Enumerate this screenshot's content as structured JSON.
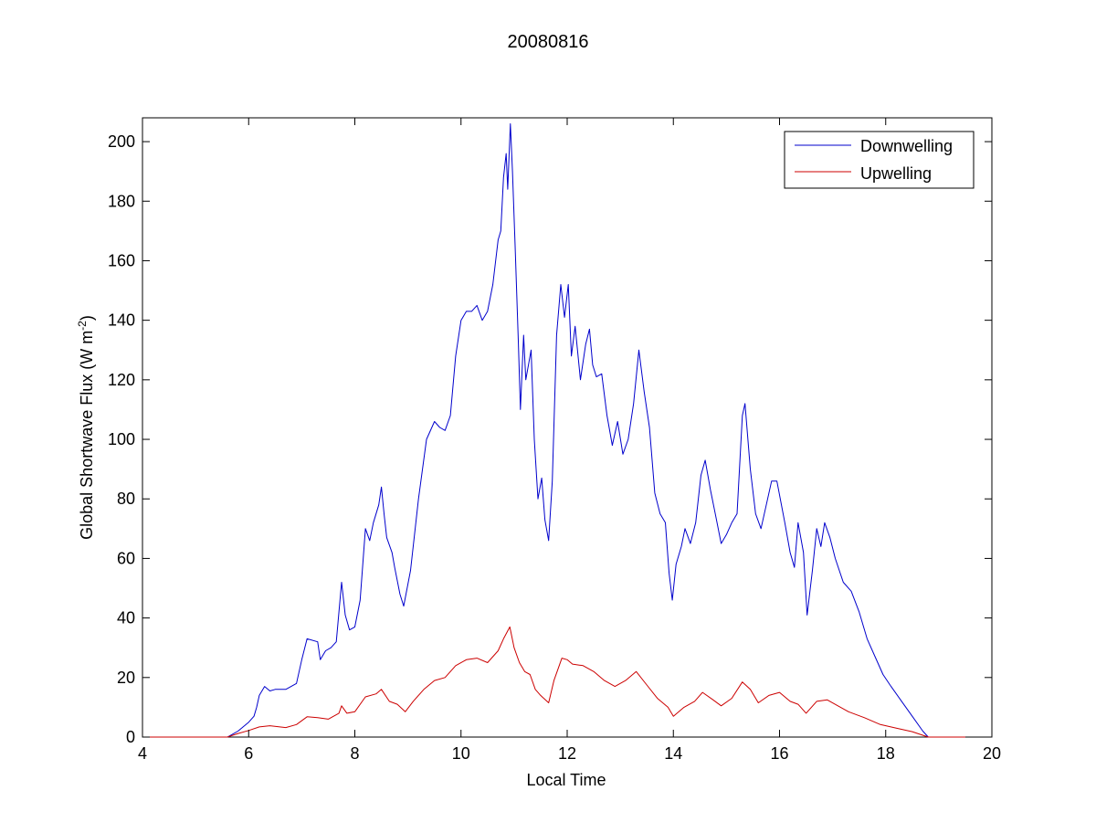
{
  "chart_data": {
    "type": "line",
    "title": "20080816",
    "xlabel": "Local Time",
    "ylabel_main": "Global Shortwave Flux (W m",
    "ylabel_sup": "-2",
    "ylabel_close": ")",
    "xlim": [
      4,
      20
    ],
    "ylim": [
      0,
      208
    ],
    "xticks": [
      4,
      6,
      8,
      10,
      12,
      14,
      16,
      18,
      20
    ],
    "yticks": [
      0,
      20,
      40,
      60,
      80,
      100,
      120,
      140,
      160,
      180,
      200
    ],
    "grid": false,
    "legend_position": "top-right",
    "series": [
      {
        "name": "Downwelling",
        "color": "#0000cc",
        "points": [
          [
            4.0,
            0
          ],
          [
            5.6,
            0
          ],
          [
            5.8,
            2
          ],
          [
            6.0,
            5
          ],
          [
            6.1,
            7
          ],
          [
            6.15,
            10
          ],
          [
            6.2,
            14
          ],
          [
            6.3,
            17
          ],
          [
            6.4,
            15.5
          ],
          [
            6.5,
            16
          ],
          [
            6.7,
            16
          ],
          [
            6.9,
            18
          ],
          [
            7.0,
            26
          ],
          [
            7.1,
            33
          ],
          [
            7.3,
            32
          ],
          [
            7.35,
            26
          ],
          [
            7.45,
            29
          ],
          [
            7.55,
            30
          ],
          [
            7.65,
            32
          ],
          [
            7.75,
            52
          ],
          [
            7.82,
            41
          ],
          [
            7.9,
            36
          ],
          [
            8.0,
            37
          ],
          [
            8.1,
            46
          ],
          [
            8.2,
            70
          ],
          [
            8.28,
            66
          ],
          [
            8.35,
            72
          ],
          [
            8.45,
            78
          ],
          [
            8.5,
            84
          ],
          [
            8.55,
            75
          ],
          [
            8.6,
            67
          ],
          [
            8.7,
            62
          ],
          [
            8.75,
            57
          ],
          [
            8.85,
            48
          ],
          [
            8.92,
            44
          ],
          [
            9.05,
            56
          ],
          [
            9.2,
            80
          ],
          [
            9.35,
            100
          ],
          [
            9.5,
            106
          ],
          [
            9.6,
            104
          ],
          [
            9.7,
            103
          ],
          [
            9.8,
            108
          ],
          [
            9.9,
            128
          ],
          [
            10.0,
            140
          ],
          [
            10.1,
            143
          ],
          [
            10.2,
            143
          ],
          [
            10.3,
            145
          ],
          [
            10.4,
            140
          ],
          [
            10.5,
            143
          ],
          [
            10.6,
            152
          ],
          [
            10.7,
            167
          ],
          [
            10.75,
            170
          ],
          [
            10.8,
            188
          ],
          [
            10.85,
            196
          ],
          [
            10.88,
            184
          ],
          [
            10.93,
            206
          ],
          [
            10.97,
            190
          ],
          [
            11.02,
            165
          ],
          [
            11.08,
            133
          ],
          [
            11.12,
            110
          ],
          [
            11.18,
            135
          ],
          [
            11.22,
            120
          ],
          [
            11.32,
            130
          ],
          [
            11.38,
            100
          ],
          [
            11.45,
            80
          ],
          [
            11.52,
            87
          ],
          [
            11.58,
            73
          ],
          [
            11.65,
            66
          ],
          [
            11.72,
            86
          ],
          [
            11.8,
            135
          ],
          [
            11.88,
            152
          ],
          [
            11.95,
            141
          ],
          [
            12.02,
            152
          ],
          [
            12.08,
            128
          ],
          [
            12.15,
            138
          ],
          [
            12.25,
            120
          ],
          [
            12.35,
            132
          ],
          [
            12.42,
            137
          ],
          [
            12.48,
            125
          ],
          [
            12.55,
            121
          ],
          [
            12.65,
            122
          ],
          [
            12.75,
            108
          ],
          [
            12.85,
            98
          ],
          [
            12.95,
            106
          ],
          [
            13.05,
            95
          ],
          [
            13.15,
            100
          ],
          [
            13.25,
            112
          ],
          [
            13.35,
            130
          ],
          [
            13.45,
            116
          ],
          [
            13.55,
            104
          ],
          [
            13.65,
            82
          ],
          [
            13.75,
            75
          ],
          [
            13.85,
            72
          ],
          [
            13.92,
            55
          ],
          [
            13.98,
            46
          ],
          [
            14.05,
            58
          ],
          [
            14.15,
            64
          ],
          [
            14.22,
            70
          ],
          [
            14.32,
            65
          ],
          [
            14.42,
            72
          ],
          [
            14.52,
            88
          ],
          [
            14.6,
            93
          ],
          [
            14.7,
            83
          ],
          [
            14.8,
            74
          ],
          [
            14.9,
            65
          ],
          [
            15.0,
            68
          ],
          [
            15.1,
            72
          ],
          [
            15.2,
            75
          ],
          [
            15.3,
            108
          ],
          [
            15.35,
            112
          ],
          [
            15.45,
            90
          ],
          [
            15.55,
            75
          ],
          [
            15.65,
            70
          ],
          [
            15.75,
            78
          ],
          [
            15.85,
            86
          ],
          [
            15.95,
            86
          ],
          [
            16.1,
            72
          ],
          [
            16.2,
            62
          ],
          [
            16.28,
            57
          ],
          [
            16.35,
            72
          ],
          [
            16.45,
            62
          ],
          [
            16.52,
            41
          ],
          [
            16.62,
            56
          ],
          [
            16.7,
            70
          ],
          [
            16.78,
            64
          ],
          [
            16.85,
            72
          ],
          [
            16.95,
            67
          ],
          [
            17.05,
            60
          ],
          [
            17.2,
            52
          ],
          [
            17.35,
            49
          ],
          [
            17.5,
            42
          ],
          [
            17.65,
            33
          ],
          [
            17.8,
            27
          ],
          [
            17.95,
            21
          ],
          [
            18.1,
            17
          ],
          [
            18.3,
            12
          ],
          [
            18.5,
            7
          ],
          [
            18.7,
            2
          ],
          [
            18.8,
            0
          ],
          [
            19.5,
            0
          ]
        ]
      },
      {
        "name": "Upwelling",
        "color": "#cc0000",
        "points": [
          [
            4.0,
            0
          ],
          [
            5.6,
            0
          ],
          [
            5.8,
            1.2
          ],
          [
            6.0,
            2.2
          ],
          [
            6.2,
            3.4
          ],
          [
            6.4,
            3.8
          ],
          [
            6.7,
            3.2
          ],
          [
            6.9,
            4.2
          ],
          [
            7.1,
            6.8
          ],
          [
            7.3,
            6.5
          ],
          [
            7.5,
            6.0
          ],
          [
            7.7,
            8.0
          ],
          [
            7.75,
            10.5
          ],
          [
            7.85,
            8.0
          ],
          [
            8.0,
            8.5
          ],
          [
            8.2,
            13.5
          ],
          [
            8.4,
            14.5
          ],
          [
            8.5,
            16.0
          ],
          [
            8.65,
            12.0
          ],
          [
            8.8,
            11.0
          ],
          [
            8.95,
            8.5
          ],
          [
            9.1,
            12.0
          ],
          [
            9.3,
            16.0
          ],
          [
            9.5,
            19.0
          ],
          [
            9.7,
            20.0
          ],
          [
            9.9,
            24.0
          ],
          [
            10.1,
            26.0
          ],
          [
            10.3,
            26.5
          ],
          [
            10.5,
            25.0
          ],
          [
            10.7,
            29.0
          ],
          [
            10.8,
            33.0
          ],
          [
            10.92,
            37.0
          ],
          [
            11.0,
            30.0
          ],
          [
            11.1,
            25.0
          ],
          [
            11.2,
            22.0
          ],
          [
            11.3,
            21.0
          ],
          [
            11.4,
            16.0
          ],
          [
            11.5,
            14.0
          ],
          [
            11.65,
            11.5
          ],
          [
            11.75,
            19.0
          ],
          [
            11.9,
            26.5
          ],
          [
            12.0,
            26.0
          ],
          [
            12.1,
            24.5
          ],
          [
            12.3,
            24.0
          ],
          [
            12.5,
            22.0
          ],
          [
            12.7,
            19.0
          ],
          [
            12.9,
            17.0
          ],
          [
            13.1,
            19.0
          ],
          [
            13.3,
            22.0
          ],
          [
            13.5,
            17.5
          ],
          [
            13.7,
            13.0
          ],
          [
            13.9,
            10.0
          ],
          [
            14.0,
            7.0
          ],
          [
            14.2,
            10.0
          ],
          [
            14.4,
            12.0
          ],
          [
            14.55,
            15.0
          ],
          [
            14.75,
            12.5
          ],
          [
            14.9,
            10.5
          ],
          [
            15.1,
            13.0
          ],
          [
            15.3,
            18.5
          ],
          [
            15.45,
            16.0
          ],
          [
            15.6,
            11.5
          ],
          [
            15.8,
            14.0
          ],
          [
            16.0,
            15.0
          ],
          [
            16.2,
            12.0
          ],
          [
            16.35,
            11.0
          ],
          [
            16.5,
            8.0
          ],
          [
            16.7,
            12.0
          ],
          [
            16.9,
            12.5
          ],
          [
            17.1,
            10.5
          ],
          [
            17.3,
            8.5
          ],
          [
            17.6,
            6.5
          ],
          [
            17.9,
            4.2
          ],
          [
            18.2,
            3.0
          ],
          [
            18.5,
            1.8
          ],
          [
            18.8,
            0
          ],
          [
            19.5,
            0
          ]
        ]
      }
    ]
  }
}
